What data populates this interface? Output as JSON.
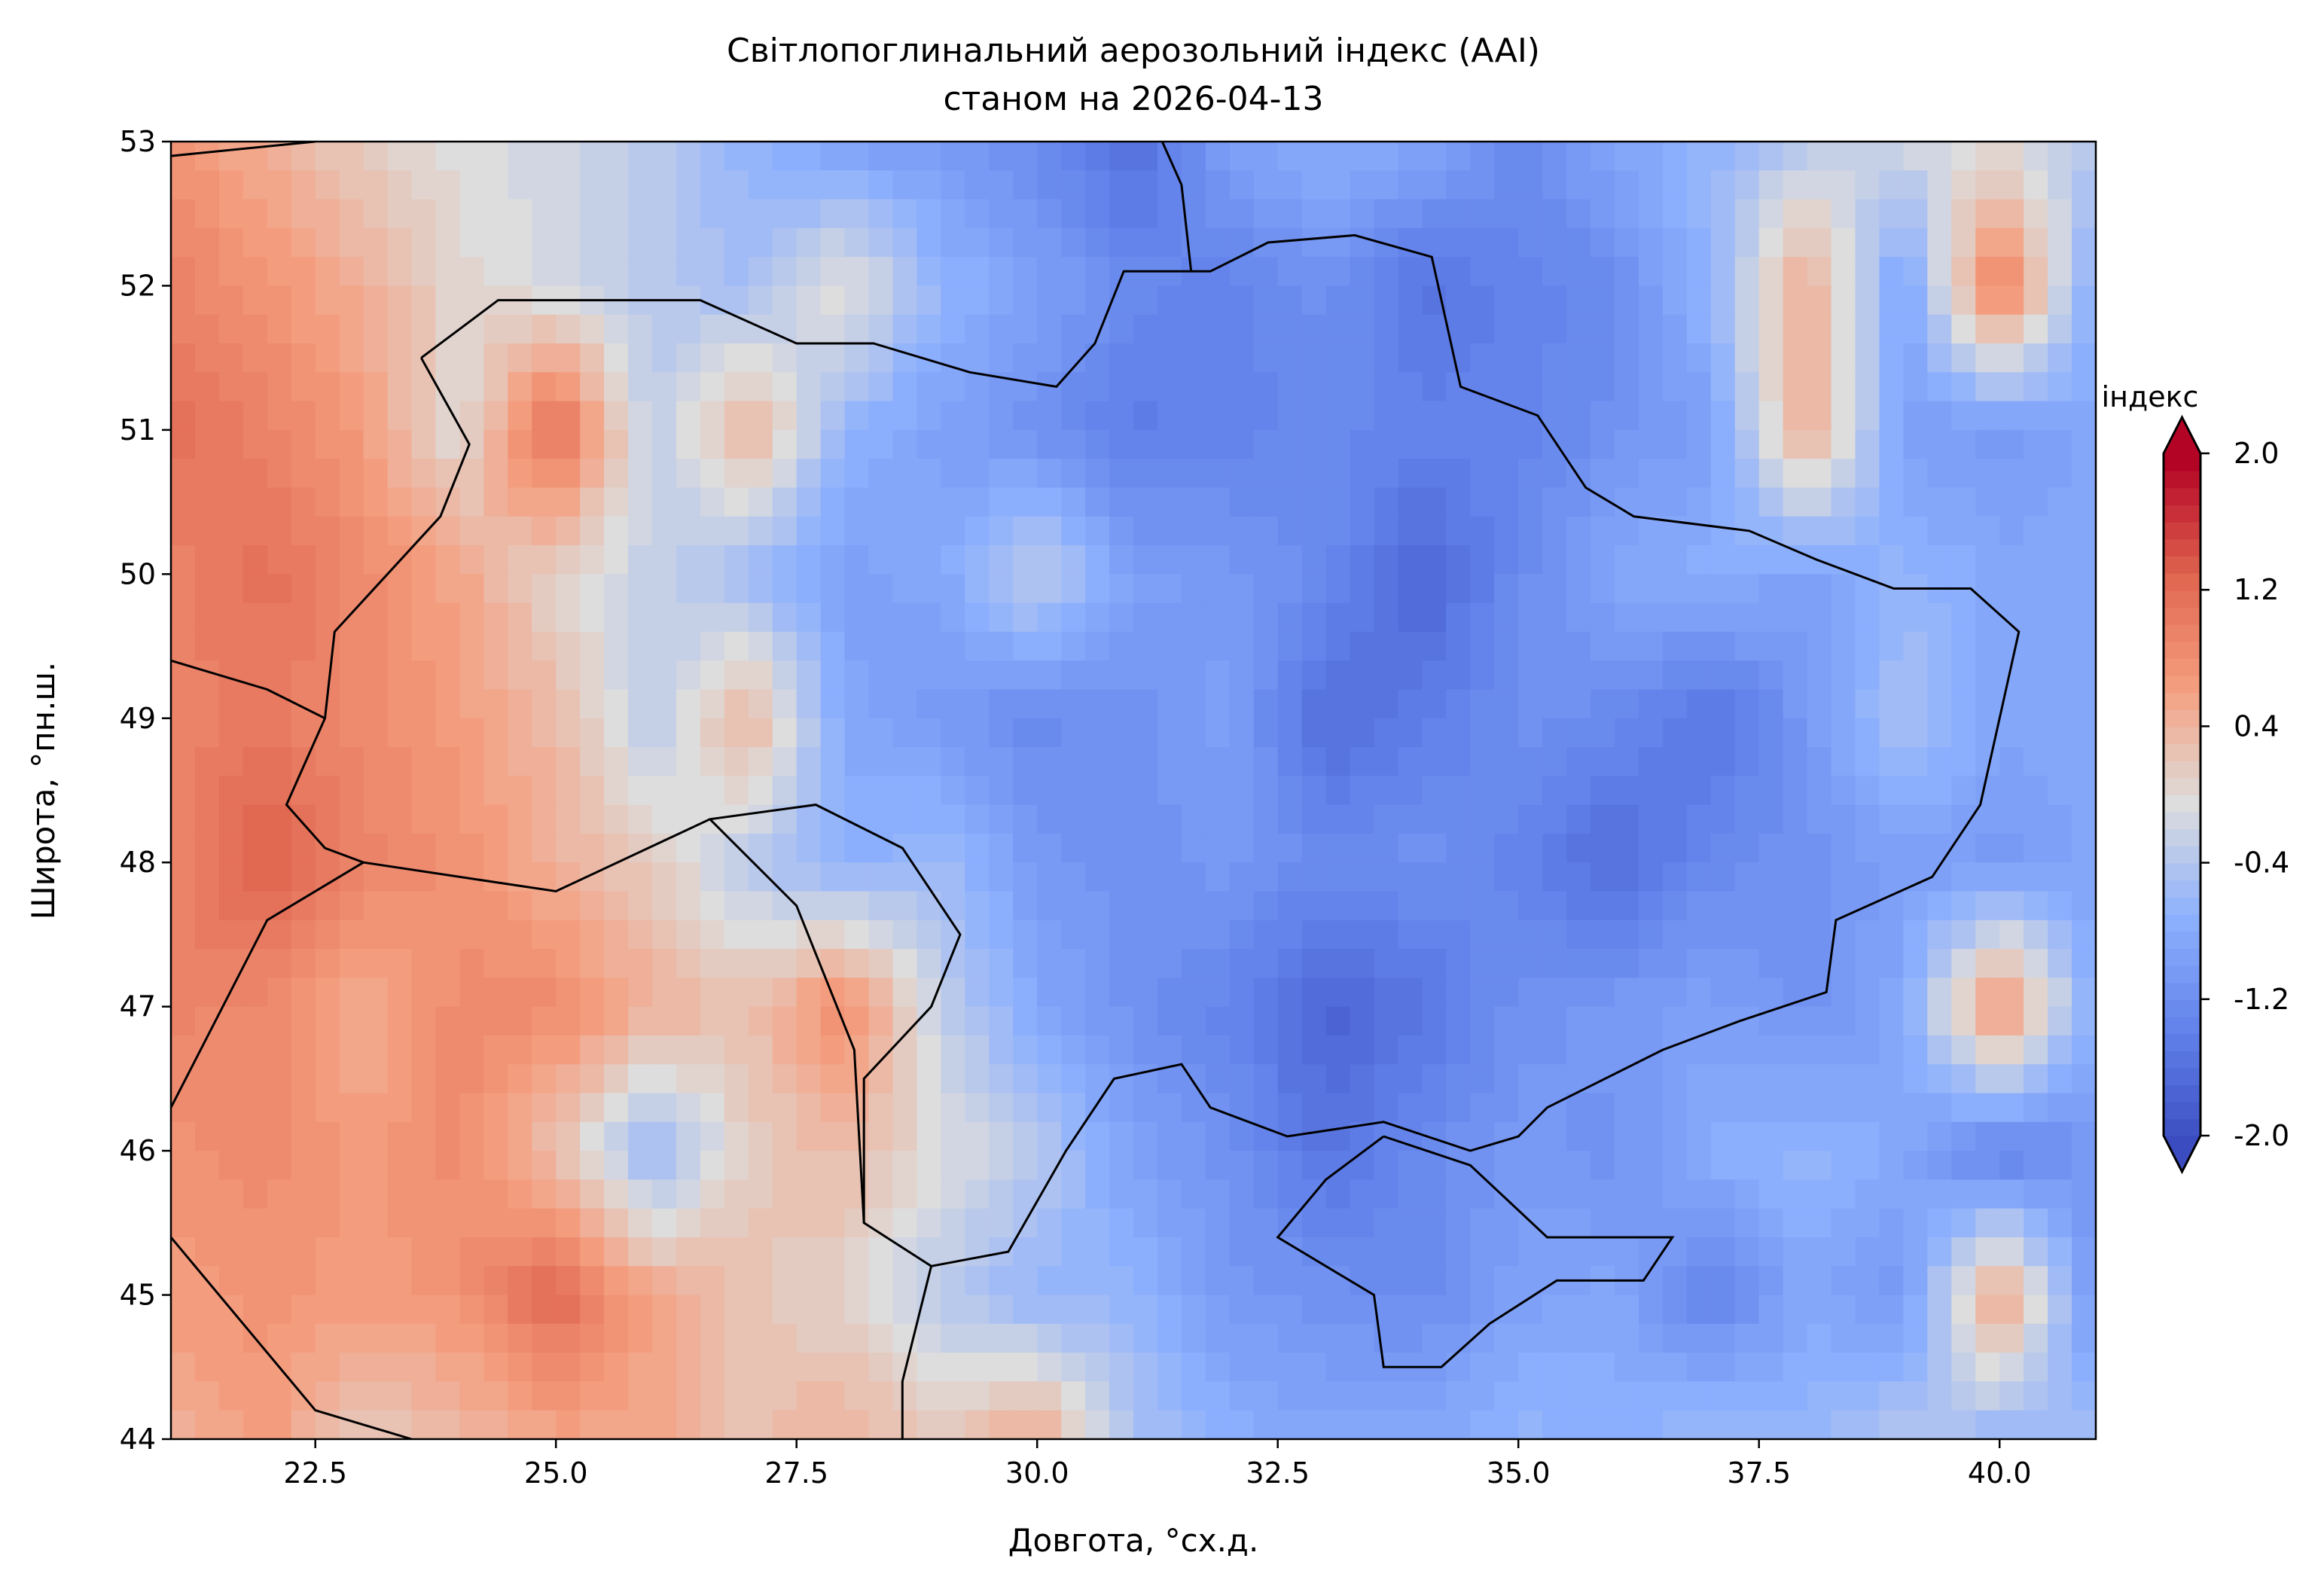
{
  "chart_data": {
    "type": "heatmap",
    "title": "Світлопоглинальний аерозольний індекс (AAI)",
    "subtitle": "станом на 2026-04-13",
    "xlabel": "Довгота, °сх.д.",
    "ylabel": "Широта, °пн.ш.",
    "xlim": [
      21,
      41
    ],
    "ylim": [
      44,
      53
    ],
    "xticks": [
      "22.5",
      "25.0",
      "27.5",
      "30.0",
      "32.5",
      "35.0",
      "37.5",
      "40.0"
    ],
    "yticks": [
      "44",
      "45",
      "46",
      "47",
      "48",
      "49",
      "50",
      "51",
      "52",
      "53"
    ],
    "colorbar": {
      "label": "індекс",
      "colormap": "coolwarm",
      "range": [
        -2.0,
        2.0
      ],
      "ticks": [
        "2.0",
        "1.2",
        "0.4",
        "-0.4",
        "-1.2",
        "-2.0"
      ],
      "extend": "both"
    },
    "grid": false,
    "lon": [
      21,
      22,
      23,
      24,
      25,
      26,
      27,
      28,
      29,
      30,
      31,
      32,
      33,
      34,
      35,
      36,
      37,
      38,
      39,
      40,
      41
    ],
    "lat": [
      53,
      52,
      51,
      50,
      49,
      48,
      47,
      46,
      45,
      44
    ],
    "values": [
      [
        0.8,
        0.5,
        0.2,
        0.0,
        -0.1,
        -0.3,
        -0.6,
        -0.9,
        -1.0,
        -1.2,
        -1.6,
        -0.9,
        -0.7,
        -0.8,
        -1.2,
        -0.8,
        -0.6,
        -0.3,
        -0.1,
        0.0,
        -0.3
      ],
      [
        1.0,
        0.8,
        0.5,
        0.1,
        -0.1,
        -0.3,
        -0.5,
        0.1,
        -0.6,
        -0.9,
        -1.2,
        -1.3,
        -1.1,
        -1.5,
        -1.3,
        -1.2,
        -0.6,
        0.6,
        -0.9,
        1.1,
        -0.8
      ],
      [
        1.2,
        1.0,
        0.7,
        0.0,
        1.3,
        -0.3,
        0.5,
        -0.6,
        -0.9,
        -1.1,
        -1.4,
        -1.3,
        -1.2,
        -1.3,
        -1.3,
        -1.1,
        -0.9,
        0.6,
        -0.9,
        -1.0,
        -0.8
      ],
      [
        1.0,
        1.2,
        0.9,
        0.6,
        0.1,
        -0.2,
        -0.5,
        -0.9,
        -0.8,
        -0.2,
        -0.9,
        -1.0,
        -1.2,
        -1.7,
        -1.2,
        -0.8,
        -0.7,
        -0.9,
        -0.6,
        -0.8,
        -0.8
      ],
      [
        1.0,
        1.1,
        0.9,
        0.7,
        0.4,
        -0.3,
        0.5,
        -0.8,
        -1.0,
        -1.2,
        -1.1,
        -0.9,
        -1.6,
        -1.4,
        -1.1,
        -1.2,
        -1.5,
        -1.0,
        -0.4,
        -0.8,
        -0.8
      ],
      [
        1.0,
        1.4,
        1.0,
        0.8,
        0.5,
        0.2,
        -0.3,
        -0.7,
        -0.5,
        -1.0,
        -1.1,
        -1.0,
        -1.2,
        -1.1,
        -1.3,
        -1.6,
        -1.2,
        -1.1,
        -0.9,
        -1.0,
        -0.8
      ],
      [
        1.0,
        0.9,
        0.5,
        0.9,
        0.9,
        0.5,
        0.3,
        0.9,
        -0.2,
        -0.8,
        -1.1,
        -1.3,
        -1.7,
        -1.5,
        -1.1,
        -1.0,
        -0.9,
        -1.1,
        -0.8,
        0.9,
        -0.8
      ],
      [
        0.8,
        0.9,
        0.7,
        0.9,
        0.3,
        -0.6,
        0.2,
        0.4,
        0.0,
        -0.3,
        -0.9,
        -1.1,
        -1.5,
        -1.2,
        -1.0,
        -1.1,
        -0.7,
        -0.6,
        -0.8,
        -1.4,
        -1.0
      ],
      [
        0.7,
        0.8,
        0.7,
        0.8,
        1.3,
        0.6,
        0.3,
        0.1,
        -0.3,
        -0.6,
        -0.6,
        -1.0,
        -1.1,
        -1.2,
        -0.9,
        -0.8,
        -1.3,
        -0.8,
        -1.0,
        0.7,
        -1.1
      ],
      [
        0.5,
        0.7,
        0.2,
        0.4,
        0.6,
        0.6,
        0.3,
        0.5,
        0.2,
        0.6,
        -0.4,
        -0.7,
        -0.8,
        -0.8,
        -0.6,
        -0.7,
        -0.5,
        -0.6,
        -0.3,
        -0.6,
        -0.5
      ]
    ]
  }
}
